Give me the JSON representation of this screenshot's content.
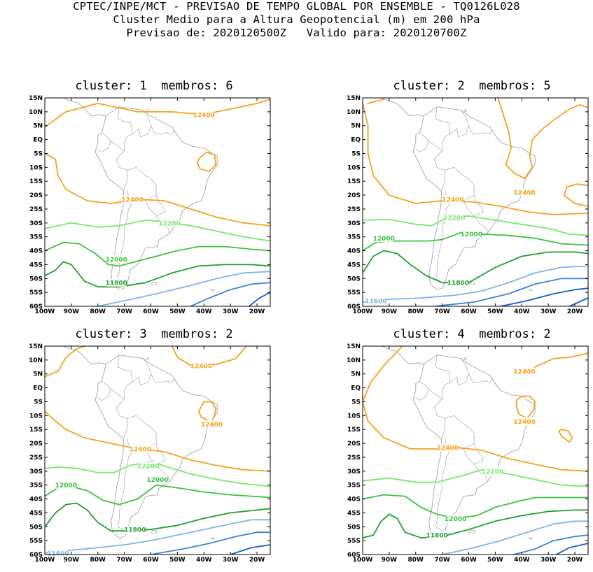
{
  "header": {
    "line1": "CPTEC/INPE/MCT - PREVISAO DE TEMPO GLOBAL POR ENSEMBLE - TQ0126L028",
    "line2": "Cluster Medio para a Altura Geopotencial (m) em 200 hPa",
    "line3": "Previsao de: 2020120500Z   Valido para: 2020120700Z"
  },
  "axes": {
    "lat_ticks": [
      "15N",
      "10N",
      "5N",
      "EQ",
      "5S",
      "10S",
      "15S",
      "20S",
      "25S",
      "30S",
      "35S",
      "40S",
      "45S",
      "50S",
      "55S",
      "60S"
    ],
    "lon_ticks": [
      "100W",
      "90W",
      "80W",
      "70W",
      "60W",
      "50W",
      "40W",
      "30W",
      "20W"
    ]
  },
  "colors": {
    "c12400": "#f6a31a",
    "c12200": "#7ae86f",
    "c12000": "#3cc241",
    "c11800": "#1ea12c",
    "c11600": "#7cb6ec",
    "c11500": "#3d83d8",
    "c11400": "#1a5bc6",
    "land": "#9a9a9a"
  },
  "panels": [
    {
      "title": "cluster: 1  membros: 6",
      "labels": [
        {
          "text": "12400",
          "lon": -40,
          "lat": 9,
          "c": "c12400"
        },
        {
          "text": "12400",
          "lon": -67,
          "lat": -21.5,
          "c": "c12400"
        },
        {
          "text": "12200",
          "lon": -53,
          "lat": -30,
          "c": "c12200"
        },
        {
          "text": "12000",
          "lon": -73,
          "lat": -43,
          "c": "c12000"
        },
        {
          "text": "11800",
          "lon": -73,
          "lat": -51.5,
          "c": "c11800"
        }
      ]
    },
    {
      "title": "cluster: 2  membros: 5",
      "labels": [
        {
          "text": "12400",
          "lon": -39,
          "lat": -19,
          "c": "c12400"
        },
        {
          "text": "12400",
          "lon": -66,
          "lat": -21.5,
          "c": "c12400"
        },
        {
          "text": "12200",
          "lon": -65.5,
          "lat": -28,
          "c": "c12200"
        },
        {
          "text": "12000",
          "lon": -92,
          "lat": -35.5,
          "c": "c12000"
        },
        {
          "text": "12000",
          "lon": -59,
          "lat": -34,
          "c": "c12000"
        },
        {
          "text": "11800",
          "lon": -64,
          "lat": -51.5,
          "c": "c11800"
        },
        {
          "text": "11600",
          "lon": -95,
          "lat": -58,
          "c": "c11600"
        }
      ]
    },
    {
      "title": "cluster: 3  membros: 2",
      "labels": [
        {
          "text": "12400",
          "lon": -41,
          "lat": 8,
          "c": "c12400"
        },
        {
          "text": "12400",
          "lon": -37,
          "lat": -13,
          "c": "c12400"
        },
        {
          "text": "12400",
          "lon": -64,
          "lat": -22,
          "c": "c12400"
        },
        {
          "text": "12200",
          "lon": -61,
          "lat": -28,
          "c": "c12200"
        },
        {
          "text": "12000",
          "lon": -92,
          "lat": -35,
          "c": "c12000"
        },
        {
          "text": "12000",
          "lon": -57.5,
          "lat": -33,
          "c": "c12000"
        },
        {
          "text": "11800",
          "lon": -66,
          "lat": -51,
          "c": "c11800"
        },
        {
          "text": "11600",
          "lon": -95,
          "lat": -59.5,
          "c": "c11600"
        }
      ]
    },
    {
      "title": "cluster: 4  membros: 2",
      "labels": [
        {
          "text": "12400",
          "lon": -39,
          "lat": 6,
          "c": "c12400"
        },
        {
          "text": "12400",
          "lon": -39,
          "lat": -12,
          "c": "c12400"
        },
        {
          "text": "12400",
          "lon": -68,
          "lat": -21.5,
          "c": "c12400"
        },
        {
          "text": "12200",
          "lon": -51,
          "lat": -30,
          "c": "c12200"
        },
        {
          "text": "12000",
          "lon": -65,
          "lat": -47,
          "c": "c12000"
        },
        {
          "text": "11800",
          "lon": -72,
          "lat": -53,
          "c": "c11800"
        }
      ]
    }
  ]
}
